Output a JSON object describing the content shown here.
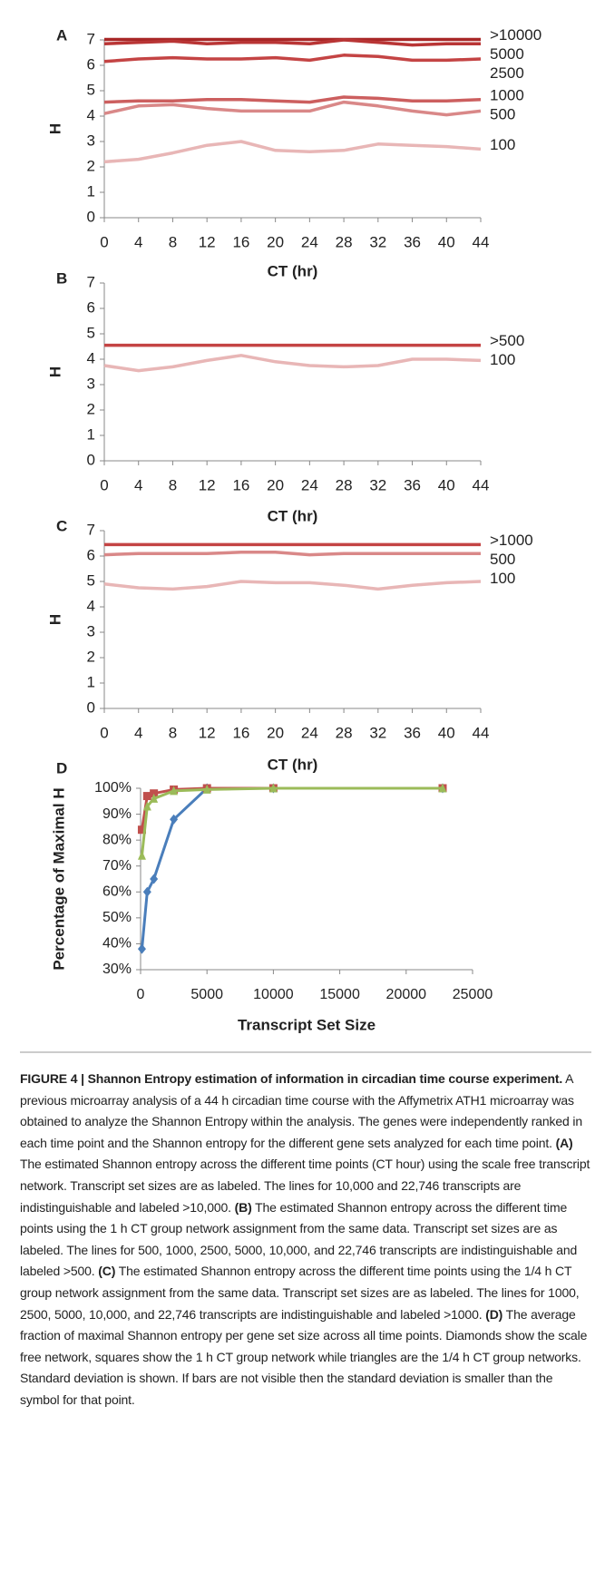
{
  "chart_data": [
    {
      "type": "line",
      "panel": "A",
      "xlabel": "CT (hr)",
      "ylabel": "H",
      "x": [
        0,
        4,
        8,
        12,
        16,
        20,
        24,
        28,
        32,
        36,
        40,
        44
      ],
      "xlim": [
        0,
        44
      ],
      "xticks": [
        0,
        4,
        8,
        12,
        16,
        20,
        24,
        28,
        32,
        36,
        40,
        44
      ],
      "ylim": [
        0,
        7
      ],
      "yticks": [
        0,
        1,
        2,
        3,
        4,
        5,
        6,
        7
      ],
      "series": [
        {
          "name": ">10000",
          "color": "#a82626",
          "values": [
            7.02,
            7.02,
            7.02,
            7.02,
            7.02,
            7.02,
            7.02,
            7.02,
            7.02,
            7.02,
            7.02,
            7.02
          ]
        },
        {
          "name": "5000",
          "color": "#b93535",
          "values": [
            6.85,
            6.9,
            6.95,
            6.85,
            6.9,
            6.9,
            6.85,
            7.0,
            6.9,
            6.8,
            6.85,
            6.85
          ]
        },
        {
          "name": "2500",
          "color": "#c44444",
          "values": [
            6.15,
            6.25,
            6.3,
            6.25,
            6.25,
            6.3,
            6.2,
            6.4,
            6.35,
            6.2,
            6.2,
            6.25
          ]
        },
        {
          "name": "1000",
          "color": "#cc5f5f",
          "values": [
            4.55,
            4.6,
            4.6,
            4.65,
            4.65,
            4.6,
            4.55,
            4.75,
            4.7,
            4.6,
            4.6,
            4.65
          ]
        },
        {
          "name": "500",
          "color": "#d98888",
          "values": [
            4.1,
            4.4,
            4.45,
            4.3,
            4.2,
            4.2,
            4.2,
            4.55,
            4.4,
            4.2,
            4.05,
            4.2
          ]
        },
        {
          "name": "100",
          "color": "#e8b6b6",
          "values": [
            2.2,
            2.3,
            2.55,
            2.85,
            3.0,
            2.65,
            2.6,
            2.65,
            2.9,
            2.85,
            2.8,
            2.7
          ]
        }
      ]
    },
    {
      "type": "line",
      "panel": "B",
      "xlabel": "CT (hr)",
      "ylabel": "H",
      "x": [
        0,
        4,
        8,
        12,
        16,
        20,
        24,
        28,
        32,
        36,
        40,
        44
      ],
      "xlim": [
        0,
        44
      ],
      "xticks": [
        0,
        4,
        8,
        12,
        16,
        20,
        24,
        28,
        32,
        36,
        40,
        44
      ],
      "ylim": [
        0,
        7
      ],
      "yticks": [
        0,
        1,
        2,
        3,
        4,
        5,
        6,
        7
      ],
      "series": [
        {
          "name": ">500",
          "color": "#c44444",
          "values": [
            4.55,
            4.55,
            4.55,
            4.55,
            4.55,
            4.55,
            4.55,
            4.55,
            4.55,
            4.55,
            4.55,
            4.55
          ]
        },
        {
          "name": "100",
          "color": "#e8b6b6",
          "values": [
            3.75,
            3.55,
            3.7,
            3.95,
            4.15,
            3.9,
            3.75,
            3.7,
            3.75,
            4.0,
            4.0,
            3.95
          ]
        }
      ]
    },
    {
      "type": "line",
      "panel": "C",
      "xlabel": "CT (hr)",
      "ylabel": "H",
      "x": [
        0,
        4,
        8,
        12,
        16,
        20,
        24,
        28,
        32,
        36,
        40,
        44
      ],
      "xlim": [
        0,
        44
      ],
      "xticks": [
        0,
        4,
        8,
        12,
        16,
        20,
        24,
        28,
        32,
        36,
        40,
        44
      ],
      "ylim": [
        0,
        7
      ],
      "yticks": [
        0,
        1,
        2,
        3,
        4,
        5,
        6,
        7
      ],
      "series": [
        {
          "name": ">1000",
          "color": "#c44444",
          "values": [
            6.45,
            6.45,
            6.45,
            6.45,
            6.45,
            6.45,
            6.45,
            6.45,
            6.45,
            6.45,
            6.45,
            6.45
          ]
        },
        {
          "name": "500",
          "color": "#d98888",
          "values": [
            6.05,
            6.1,
            6.1,
            6.1,
            6.15,
            6.15,
            6.05,
            6.1,
            6.1,
            6.1,
            6.1,
            6.1
          ]
        },
        {
          "name": "100",
          "color": "#e8b6b6",
          "values": [
            4.9,
            4.75,
            4.7,
            4.8,
            5.0,
            4.95,
            4.95,
            4.85,
            4.7,
            4.85,
            4.95,
            5.0
          ]
        }
      ]
    },
    {
      "type": "line",
      "panel": "D",
      "xlabel": "Transcript Set Size",
      "ylabel": "Percentage of Maximal H",
      "x": [
        100,
        500,
        1000,
        2500,
        5000,
        10000,
        22746
      ],
      "xlim": [
        0,
        25000
      ],
      "xticks": [
        0,
        5000,
        10000,
        15000,
        20000,
        25000
      ],
      "ylim": [
        30,
        100
      ],
      "yticks": [
        {
          "value": 30,
          "label": "30%"
        },
        {
          "value": 40,
          "label": "40%"
        },
        {
          "value": 50,
          "label": "50%"
        },
        {
          "value": 60,
          "label": "60%"
        },
        {
          "value": 70,
          "label": "70%"
        },
        {
          "value": 80,
          "label": "80%"
        },
        {
          "value": 90,
          "label": "90%"
        },
        {
          "value": 100,
          "label": "100%"
        }
      ],
      "series": [
        {
          "color": "#4a7ebb",
          "marker": "diamond",
          "values": [
            38,
            60,
            65,
            88,
            100,
            100,
            100
          ]
        },
        {
          "color": "#c0504d",
          "marker": "square",
          "values": [
            84,
            97,
            98,
            99.5,
            100,
            100,
            100
          ]
        },
        {
          "color": "#9bbb59",
          "marker": "triangle",
          "values": [
            74,
            93,
            96,
            99,
            99.5,
            100,
            100
          ]
        }
      ]
    }
  ],
  "caption": {
    "title": "FIGURE 4 | Shannon Entropy estimation of information in circadian time course experiment.",
    "body": [
      {
        "text": " A previous microarray analysis of a 44 h circadian time course with the Affymetrix ATH1 microarray was obtained to analyze the Shannon Entropy within the analysis. The genes were independently ranked in each time point and the Shannon entropy for the different gene sets analyzed for each time point. ",
        "bold": false
      },
      {
        "text": "(A)",
        "bold": true
      },
      {
        "text": " The estimated Shannon entropy across the different time points (CT hour) using the scale free transcript network. Transcript set sizes are as labeled. The lines for 10,000 and 22,746 transcripts are indistinguishable and labeled >10,000. ",
        "bold": false
      },
      {
        "text": "(B)",
        "bold": true
      },
      {
        "text": " The estimated Shannon entropy across the different time points using the 1 h CT group network assignment from the same data. Transcript set sizes are as labeled. The lines for 500, 1000, 2500, 5000, 10,000, and 22,746 transcripts are indistinguishable and labeled >500. ",
        "bold": false
      },
      {
        "text": "(C)",
        "bold": true
      },
      {
        "text": " The estimated Shannon entropy across the different time points using the 1/4 h CT group network assignment from the same data. Transcript set sizes are as labeled. The lines for 1000, 2500, 5000, 10,000, and 22,746 transcripts are indistinguishable and labeled >1000. ",
        "bold": false
      },
      {
        "text": "(D)",
        "bold": true
      },
      {
        "text": " The average fraction of maximal Shannon entropy per gene set size across all time points. Diamonds show the scale free network, squares show the 1 h CT group network while triangles are the 1/4 h CT group networks. Standard deviation is shown. If bars are not visible then the standard deviation is smaller than the symbol for that point.",
        "bold": false
      }
    ]
  }
}
